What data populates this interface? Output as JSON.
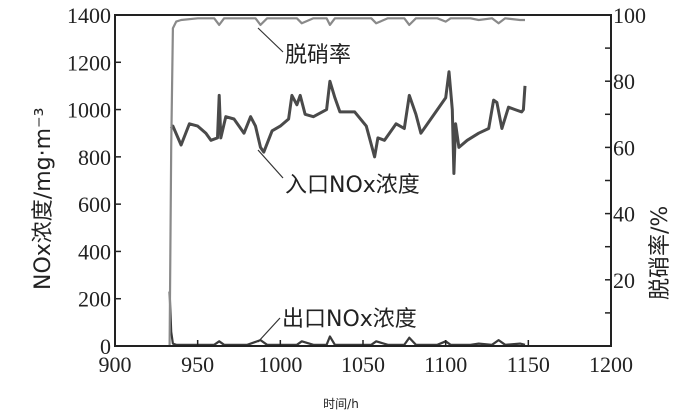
{
  "chart_data": {
    "type": "line",
    "title": "",
    "xlabel": "时间/h",
    "ylabel": "NOx浓度/mg·m⁻³",
    "ylabel_right": "脱硝率/%",
    "xlim": [
      900,
      1200
    ],
    "ylim": [
      0,
      1400
    ],
    "ylim_right": [
      0,
      100
    ],
    "xticks": [
      "900",
      "950",
      "1000",
      "1050",
      "1100",
      "1150",
      "1200"
    ],
    "yticks": [
      "0",
      "200",
      "400",
      "600",
      "800",
      "1000",
      "1200",
      "1400"
    ],
    "yticks_right": [
      "20",
      "40",
      "60",
      "80",
      "100"
    ],
    "grid": false,
    "annotations": [
      "脱硝率",
      "入口NOx浓度",
      "出口NOx浓度"
    ],
    "colors": {
      "inlet": "#4a4a4a",
      "outlet": "#3a3a3a",
      "rate": "#8a8a8a"
    },
    "series": [
      {
        "name": "入口NOx浓度",
        "axis": "left",
        "x": [
          934,
          935,
          940,
          945,
          950,
          955,
          958,
          962,
          963,
          964,
          967,
          972,
          978,
          982,
          985,
          988,
          990,
          995,
          1000,
          1005,
          1007,
          1010,
          1012,
          1015,
          1020,
          1028,
          1030,
          1033,
          1036,
          1045,
          1052,
          1057,
          1059,
          1063,
          1070,
          1075,
          1078,
          1082,
          1085,
          1095,
          1100,
          1102,
          1104,
          1105,
          1106,
          1108,
          1113,
          1120,
          1126,
          1129,
          1131,
          1134,
          1138,
          1142,
          1146,
          1147,
          1148
        ],
        "y": [
          920,
          930,
          850,
          940,
          930,
          900,
          870,
          880,
          1060,
          880,
          970,
          960,
          900,
          970,
          930,
          840,
          820,
          910,
          930,
          960,
          1060,
          1020,
          1060,
          980,
          970,
          1000,
          1120,
          1050,
          990,
          990,
          930,
          800,
          880,
          870,
          940,
          920,
          1060,
          980,
          900,
          1000,
          1050,
          1160,
          1000,
          730,
          940,
          840,
          870,
          900,
          920,
          1040,
          1030,
          920,
          1010,
          1000,
          990,
          1000,
          1100
        ]
      },
      {
        "name": "出口NOx浓度",
        "axis": "left",
        "x": [
          933,
          934,
          935,
          937,
          945,
          960,
          963,
          966,
          980,
          988,
          992,
          1000,
          1010,
          1013,
          1020,
          1028,
          1030,
          1033,
          1045,
          1055,
          1058,
          1065,
          1075,
          1078,
          1082,
          1095,
          1100,
          1103,
          1115,
          1120,
          1128,
          1132,
          1136,
          1145,
          1148
        ],
        "y": [
          230,
          60,
          10,
          5,
          5,
          5,
          20,
          5,
          5,
          25,
          5,
          5,
          5,
          20,
          5,
          5,
          40,
          5,
          5,
          5,
          20,
          5,
          5,
          35,
          5,
          5,
          20,
          5,
          5,
          10,
          5,
          25,
          5,
          10,
          5
        ]
      },
      {
        "name": "脱硝率",
        "axis": "right",
        "x": [
          933,
          934,
          935,
          937,
          940,
          950,
          960,
          963,
          966,
          975,
          985,
          988,
          992,
          1000,
          1010,
          1013,
          1020,
          1028,
          1030,
          1033,
          1045,
          1055,
          1058,
          1065,
          1075,
          1078,
          1082,
          1095,
          1100,
          1103,
          1115,
          1120,
          1128,
          1132,
          1136,
          1145,
          1148
        ],
        "y": [
          0,
          60,
          96,
          98,
          98.5,
          99,
          99,
          97,
          99,
          99,
          99,
          97,
          99,
          99,
          99,
          97.5,
          99,
          99,
          97,
          99,
          99,
          99,
          97.5,
          99,
          99,
          97,
          99,
          99,
          98,
          99,
          99,
          98.5,
          99,
          97.5,
          99,
          98.5,
          98.5
        ]
      }
    ]
  }
}
